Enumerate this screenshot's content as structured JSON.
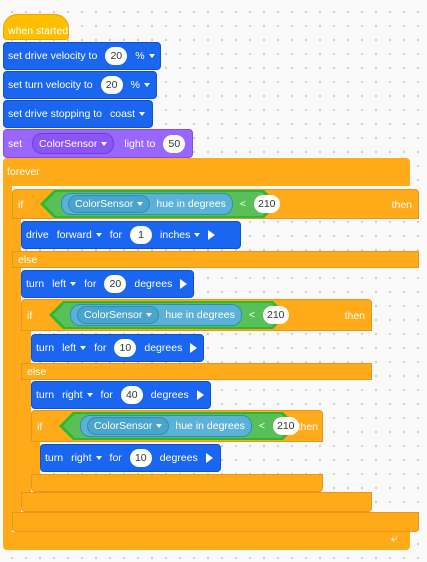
{
  "hat": {
    "label": "when started"
  },
  "blocks": {
    "drive_velocity": {
      "label": "set drive velocity to",
      "value": "20",
      "unit": "%"
    },
    "turn_velocity": {
      "label": "set turn velocity to",
      "value": "20",
      "unit": "%"
    },
    "stopping": {
      "label": "set drive stopping to",
      "mode": "coast"
    },
    "light": {
      "set": "set",
      "sensor": "ColorSensor",
      "label": "light to",
      "value": "50",
      "unit": "%"
    }
  },
  "forever": {
    "label": "forever"
  },
  "if1": {
    "if": "if",
    "then": "then",
    "else": "else",
    "sensor": "ColorSensor",
    "hue": "hue in degrees",
    "op": "<",
    "value": "210",
    "drive": {
      "label": "drive",
      "direction": "forward",
      "for": "for",
      "value": "1",
      "unit": "inches"
    },
    "turn": {
      "label": "turn",
      "direction": "left",
      "for": "for",
      "value": "20",
      "unit": "degrees"
    }
  },
  "if2": {
    "if": "if",
    "then": "then",
    "else": "else",
    "sensor": "ColorSensor",
    "hue": "hue in degrees",
    "op": "<",
    "value": "210",
    "turn_a": {
      "label": "turn",
      "direction": "left",
      "for": "for",
      "value": "10",
      "unit": "degrees"
    },
    "turn_b": {
      "label": "turn",
      "direction": "right",
      "for": "for",
      "value": "40",
      "unit": "degrees"
    }
  },
  "if3": {
    "if": "if",
    "then": "then",
    "sensor": "ColorSensor",
    "hue": "hue in degrees",
    "op": "<",
    "value": "210",
    "turn": {
      "label": "turn",
      "direction": "right",
      "for": "for",
      "value": "10",
      "unit": "degrees"
    }
  },
  "colors": {
    "motion": "#1a66f0",
    "looks": "#9966ff",
    "control": "#ffab19",
    "event": "#ffbf00",
    "operator": "#59c059",
    "sensing": "#5cb1d6"
  }
}
